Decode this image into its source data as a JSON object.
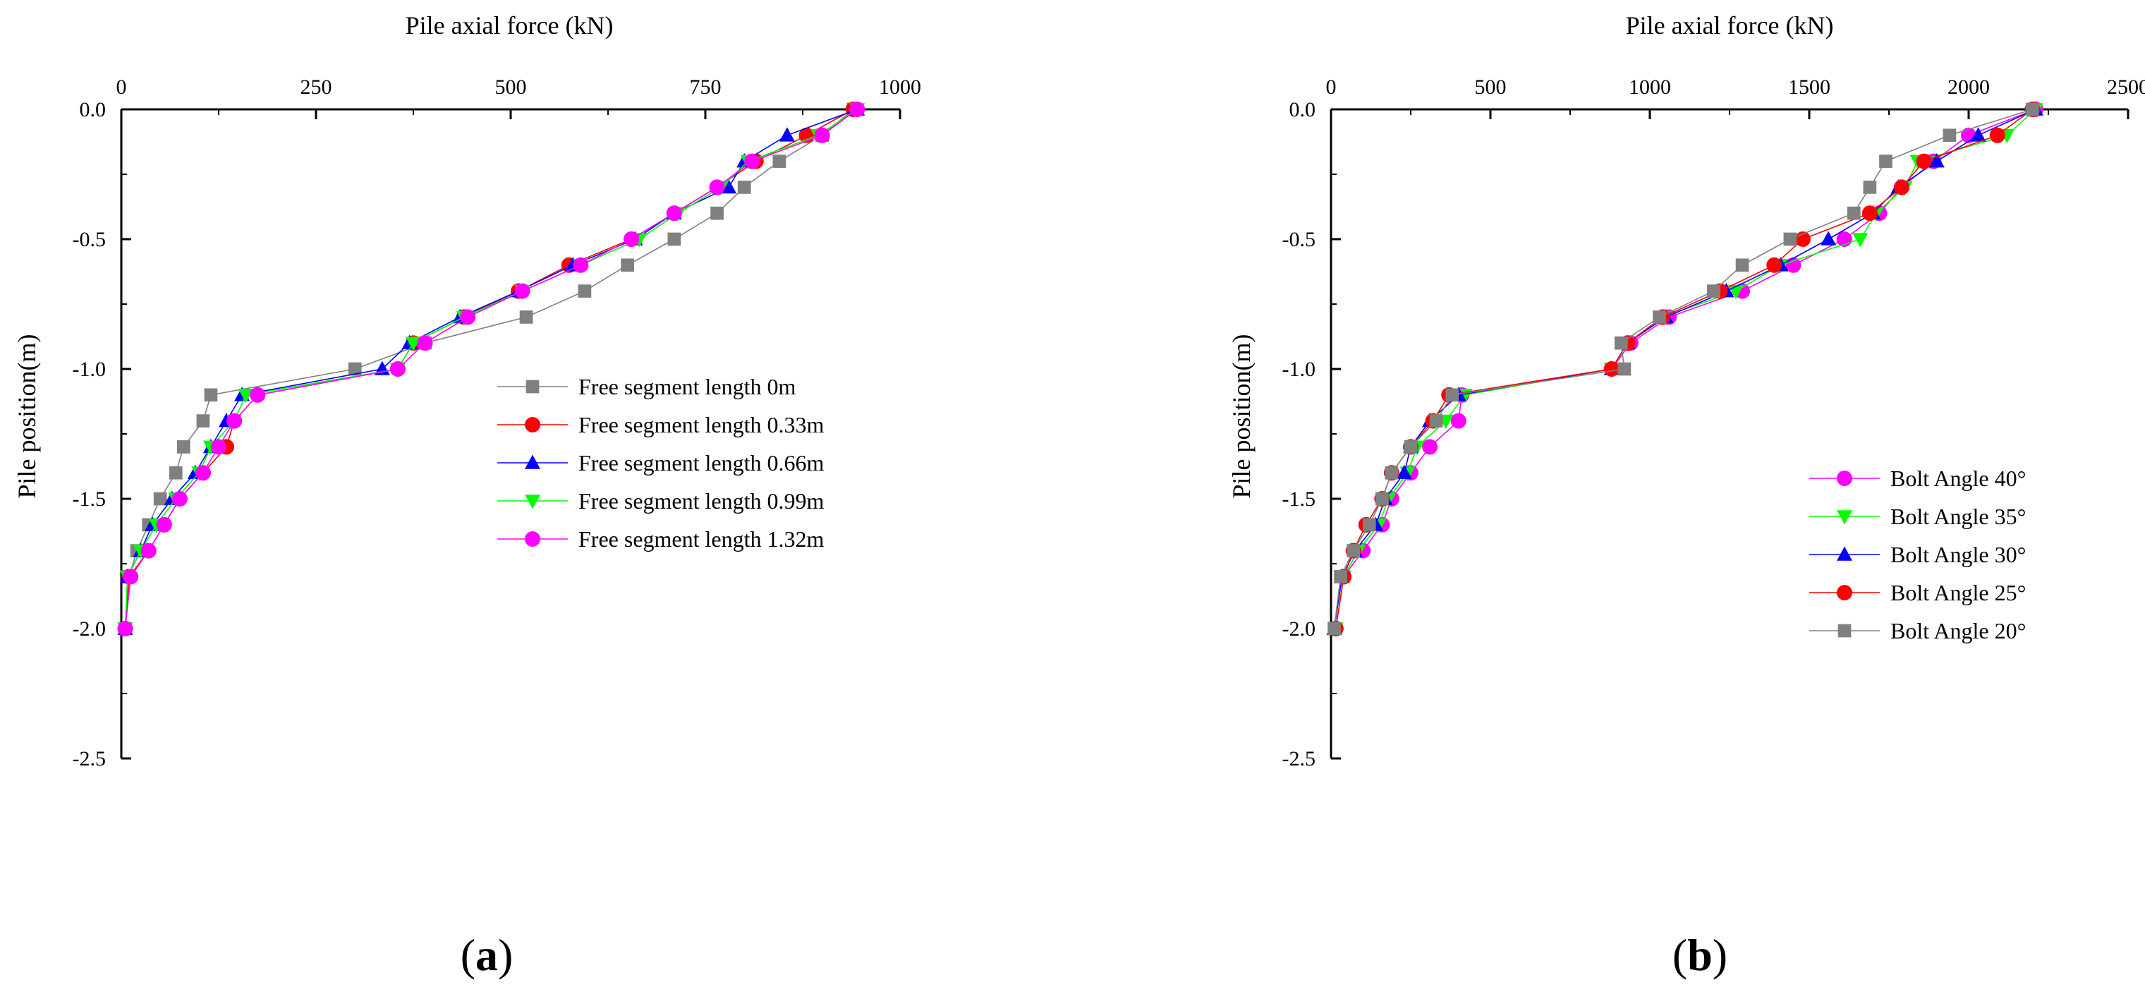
{
  "chart_data": [
    {
      "type": "line",
      "panel_label": "(a)",
      "panel_label_parts": [
        "(",
        "a",
        ")"
      ],
      "title": "",
      "xlabel": "Pile axial force (kN)",
      "ylabel": "Pile position(m)",
      "xlim": [
        0,
        1000
      ],
      "ylim": [
        -2.5,
        0.0
      ],
      "xticks": [
        0,
        250,
        500,
        750,
        1000
      ],
      "xtick_labels": [
        "0",
        "250",
        "500",
        "750",
        "1000"
      ],
      "yticks": [
        0.0,
        -0.5,
        -1.0,
        -1.5,
        -2.0,
        -2.5
      ],
      "ytick_labels": [
        "0.0",
        "-0.5",
        "-1.0",
        "-1.5",
        "-2.0",
        "-2.5"
      ],
      "x_axis_position": "top",
      "legend_position": "center-right",
      "y": [
        0,
        -0.1,
        -0.2,
        -0.3,
        -0.4,
        -0.5,
        -0.6,
        -0.7,
        -0.8,
        -0.9,
        -1.0,
        -1.1,
        -1.2,
        -1.3,
        -1.4,
        -1.5,
        -1.6,
        -1.7,
        -1.8,
        -2.0
      ],
      "series": [
        {
          "name": "Free segment length 0m",
          "color": "#808080",
          "marker": "square",
          "values": [
            940,
            900,
            845,
            800,
            765,
            710,
            650,
            595,
            520,
            390,
            300,
            115,
            105,
            80,
            70,
            50,
            35,
            20,
            10,
            5
          ]
        },
        {
          "name": "Free segment length 0.33m",
          "color": "#ff0000",
          "marker": "circle",
          "values": [
            940,
            880,
            815,
            765,
            710,
            655,
            575,
            510,
            440,
            375,
            355,
            175,
            145,
            135,
            105,
            75,
            55,
            35,
            10,
            5
          ]
        },
        {
          "name": "Free segment length 0.66m",
          "color": "#0000ff",
          "marker": "triangle-up",
          "values": [
            945,
            855,
            800,
            780,
            710,
            660,
            580,
            510,
            435,
            370,
            335,
            155,
            135,
            115,
            95,
            65,
            40,
            25,
            8,
            5
          ]
        },
        {
          "name": "Free segment length 0.99m",
          "color": "#00ff00",
          "marker": "triangle-down",
          "values": [
            945,
            895,
            805,
            770,
            715,
            665,
            590,
            515,
            440,
            375,
            355,
            160,
            145,
            115,
            100,
            70,
            45,
            25,
            8,
            5
          ]
        },
        {
          "name": "Free segment length 1.32m",
          "color": "#ff00ff",
          "marker": "circle",
          "values": [
            945,
            900,
            810,
            765,
            710,
            655,
            590,
            515,
            445,
            390,
            355,
            175,
            145,
            125,
            105,
            75,
            55,
            35,
            12,
            5
          ]
        }
      ]
    },
    {
      "type": "line",
      "panel_label": "(b)",
      "panel_label_parts": [
        "(",
        "b",
        ")"
      ],
      "title": "",
      "xlabel": "Pile axial force (kN)",
      "ylabel": "Pile position(m)",
      "xlim": [
        0,
        2500
      ],
      "ylim": [
        -2.5,
        0.0
      ],
      "xticks": [
        0,
        500,
        1000,
        1500,
        2000,
        2500
      ],
      "xtick_labels": [
        "0",
        "500",
        "1000",
        "1500",
        "2000",
        "2500"
      ],
      "yticks": [
        0.0,
        -0.5,
        -1.0,
        -1.5,
        -2.0,
        -2.5
      ],
      "ytick_labels": [
        "0.0",
        "-0.5",
        "-1.0",
        "-1.5",
        "-2.0",
        "-2.5"
      ],
      "x_axis_position": "top",
      "legend_position": "center-right",
      "y": [
        0,
        -0.1,
        -0.2,
        -0.3,
        -0.4,
        -0.5,
        -0.6,
        -0.7,
        -0.8,
        -0.9,
        -1.0,
        -1.1,
        -1.2,
        -1.3,
        -1.4,
        -1.5,
        -1.6,
        -1.7,
        -1.8,
        -2.0
      ],
      "series": [
        {
          "name": "Bolt Angle 40°",
          "color": "#ff00ff",
          "marker": "circle",
          "values": [
            2210,
            2000,
            1890,
            1790,
            1720,
            1610,
            1450,
            1290,
            1060,
            940,
            880,
            410,
            400,
            310,
            250,
            190,
            160,
            100,
            40,
            15
          ]
        },
        {
          "name": "Bolt Angle 35°",
          "color": "#00ff00",
          "marker": "triangle-down",
          "values": [
            2210,
            2120,
            1840,
            1800,
            1710,
            1660,
            1410,
            1270,
            1040,
            930,
            880,
            420,
            360,
            270,
            240,
            180,
            150,
            85,
            40,
            15
          ]
        },
        {
          "name": "Bolt Angle 30°",
          "color": "#0000ff",
          "marker": "triangle-up",
          "values": [
            2210,
            2030,
            1900,
            1780,
            1700,
            1560,
            1410,
            1240,
            1050,
            930,
            880,
            400,
            310,
            250,
            230,
            170,
            140,
            75,
            35,
            10
          ]
        },
        {
          "name": "Bolt Angle 25°",
          "color": "#ff0000",
          "marker": "circle",
          "values": [
            2200,
            2090,
            1860,
            1790,
            1690,
            1480,
            1390,
            1220,
            1040,
            930,
            880,
            370,
            320,
            250,
            190,
            160,
            110,
            70,
            40,
            15
          ]
        },
        {
          "name": "Bolt Angle 20°",
          "color": "#808080",
          "marker": "square",
          "values": [
            2200,
            1940,
            1740,
            1690,
            1640,
            1440,
            1290,
            1200,
            1030,
            910,
            920,
            380,
            330,
            250,
            190,
            160,
            120,
            70,
            30,
            10
          ]
        }
      ]
    }
  ]
}
